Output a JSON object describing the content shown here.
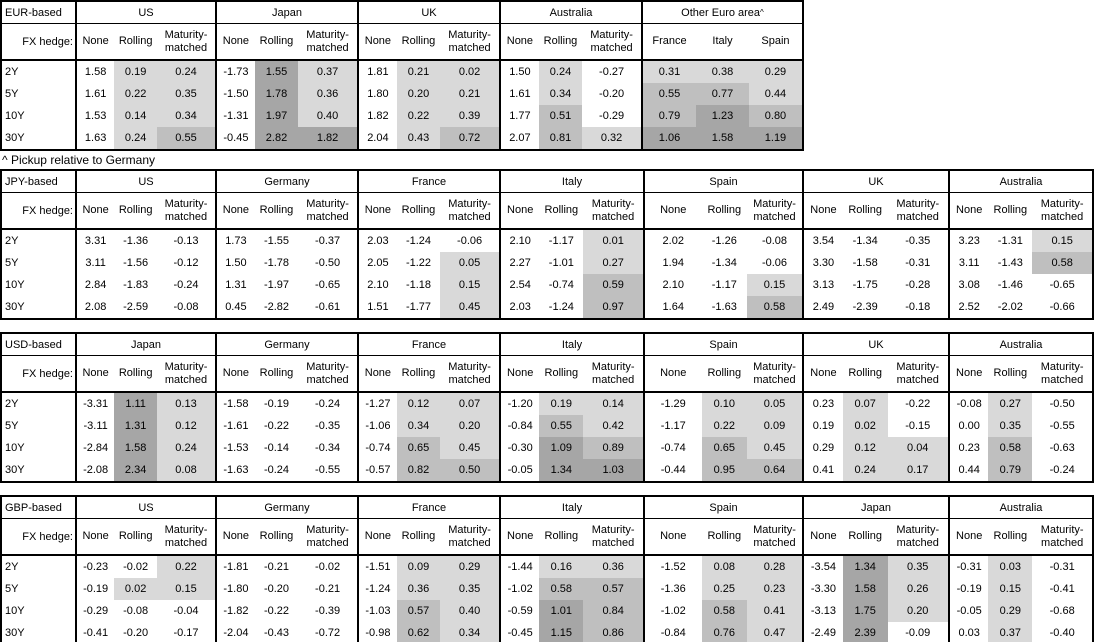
{
  "page": {
    "footnote": "^ Pickup relative to Germany"
  },
  "colors": {
    "heat_light": "#d9d9d9",
    "heat_medium": "#bfbfbf",
    "heat_dark": "#a6a6a6",
    "border": "#000000",
    "background": "#ffffff"
  },
  "heat_scale": {
    "light_min": 0,
    "medium_min": 0.5,
    "dark_min": 1
  },
  "labels": {
    "fx_hedge": "FX hedge:",
    "maturities": [
      "2Y",
      "5Y",
      "10Y",
      "30Y"
    ],
    "hedge_columns": [
      "None",
      "Rolling",
      "Maturity-matched"
    ]
  },
  "chart_data": {
    "type": "table",
    "tables": [
      {
        "base": "EUR-based",
        "groups": [
          {
            "name": "US",
            "columns": [
              "None",
              "Rolling",
              "Maturity-matched"
            ],
            "heat": [
              false,
              true,
              true
            ],
            "rows": [
              [
                "1.58",
                "0.19",
                "0.24"
              ],
              [
                "1.61",
                "0.22",
                "0.35"
              ],
              [
                "1.53",
                "0.14",
                "0.34"
              ],
              [
                "1.63",
                "0.24",
                "0.55"
              ]
            ]
          },
          {
            "name": "Japan",
            "columns": [
              "None",
              "Rolling",
              "Maturity-matched"
            ],
            "heat": [
              false,
              true,
              true
            ],
            "rows": [
              [
                "-1.73",
                "1.55",
                "0.37"
              ],
              [
                "-1.50",
                "1.78",
                "0.36"
              ],
              [
                "-1.31",
                "1.97",
                "0.40"
              ],
              [
                "-0.45",
                "2.82",
                "1.82"
              ]
            ]
          },
          {
            "name": "UK",
            "columns": [
              "None",
              "Rolling",
              "Maturity-matched"
            ],
            "heat": [
              false,
              true,
              true
            ],
            "rows": [
              [
                "1.81",
                "0.21",
                "0.02"
              ],
              [
                "1.80",
                "0.20",
                "0.21"
              ],
              [
                "1.82",
                "0.22",
                "0.39"
              ],
              [
                "2.04",
                "0.43",
                "0.72"
              ]
            ]
          },
          {
            "name": "Australia",
            "columns": [
              "None",
              "Rolling",
              "Maturity-matched"
            ],
            "heat": [
              false,
              true,
              true
            ],
            "rows": [
              [
                "1.50",
                "0.24",
                "-0.27"
              ],
              [
                "1.61",
                "0.34",
                "-0.20"
              ],
              [
                "1.77",
                "0.51",
                "-0.29"
              ],
              [
                "2.07",
                "0.81",
                "0.32"
              ]
            ]
          },
          {
            "name": "Other Euro area",
            "footnote_marker": "^",
            "columns": [
              "France",
              "Italy",
              "Spain"
            ],
            "heat": [
              true,
              true,
              true
            ],
            "rows": [
              [
                "0.31",
                "0.38",
                "0.29"
              ],
              [
                "0.55",
                "0.77",
                "0.44"
              ],
              [
                "0.79",
                "1.23",
                "0.80"
              ],
              [
                "1.06",
                "1.58",
                "1.19"
              ]
            ]
          }
        ]
      },
      {
        "base": "JPY-based",
        "groups": [
          {
            "name": "US",
            "columns": [
              "None",
              "Rolling",
              "Maturity-matched"
            ],
            "heat": [
              false,
              true,
              true
            ],
            "rows": [
              [
                "3.31",
                "-1.36",
                "-0.13"
              ],
              [
                "3.11",
                "-1.56",
                "-0.12"
              ],
              [
                "2.84",
                "-1.83",
                "-0.24"
              ],
              [
                "2.08",
                "-2.59",
                "-0.08"
              ]
            ]
          },
          {
            "name": "Germany",
            "columns": [
              "None",
              "Rolling",
              "Maturity-matched"
            ],
            "heat": [
              false,
              true,
              true
            ],
            "rows": [
              [
                "1.73",
                "-1.55",
                "-0.37"
              ],
              [
                "1.50",
                "-1.78",
                "-0.50"
              ],
              [
                "1.31",
                "-1.97",
                "-0.65"
              ],
              [
                "0.45",
                "-2.82",
                "-0.61"
              ]
            ]
          },
          {
            "name": "France",
            "columns": [
              "None",
              "Rolling",
              "Maturity-matched"
            ],
            "heat": [
              false,
              true,
              true
            ],
            "rows": [
              [
                "2.03",
                "-1.24",
                "-0.06"
              ],
              [
                "2.05",
                "-1.22",
                "0.05"
              ],
              [
                "2.10",
                "-1.18",
                "0.15"
              ],
              [
                "1.51",
                "-1.77",
                "0.45"
              ]
            ]
          },
          {
            "name": "Italy",
            "columns": [
              "None",
              "Rolling",
              "Maturity-matched"
            ],
            "heat": [
              false,
              true,
              true
            ],
            "rows": [
              [
                "2.10",
                "-1.17",
                "0.01"
              ],
              [
                "2.27",
                "-1.01",
                "0.27"
              ],
              [
                "2.54",
                "-0.74",
                "0.59"
              ],
              [
                "2.03",
                "-1.24",
                "0.97"
              ]
            ]
          },
          {
            "name": "Spain",
            "columns": [
              "None",
              "Rolling",
              "Maturity-matched"
            ],
            "heat": [
              false,
              true,
              true
            ],
            "rows": [
              [
                "2.02",
                "-1.26",
                "-0.08"
              ],
              [
                "1.94",
                "-1.34",
                "-0.06"
              ],
              [
                "2.10",
                "-1.17",
                "0.15"
              ],
              [
                "1.64",
                "-1.63",
                "0.58"
              ]
            ]
          },
          {
            "name": "UK",
            "columns": [
              "None",
              "Rolling",
              "Maturity-matched"
            ],
            "heat": [
              false,
              true,
              true
            ],
            "rows": [
              [
                "3.54",
                "-1.34",
                "-0.35"
              ],
              [
                "3.30",
                "-1.58",
                "-0.31"
              ],
              [
                "3.13",
                "-1.75",
                "-0.28"
              ],
              [
                "2.49",
                "-2.39",
                "-0.18"
              ]
            ]
          },
          {
            "name": "Australia",
            "columns": [
              "None",
              "Rolling",
              "Maturity-matched"
            ],
            "heat": [
              false,
              true,
              true
            ],
            "rows": [
              [
                "3.23",
                "-1.31",
                "0.15"
              ],
              [
                "3.11",
                "-1.43",
                "0.58"
              ],
              [
                "3.08",
                "-1.46",
                "-0.65"
              ],
              [
                "2.52",
                "-2.02",
                "-0.66"
              ]
            ]
          }
        ]
      },
      {
        "base": "USD-based",
        "groups": [
          {
            "name": "Japan",
            "columns": [
              "None",
              "Rolling",
              "Maturity-matched"
            ],
            "heat": [
              false,
              true,
              true
            ],
            "rows": [
              [
                "-3.31",
                "1.11",
                "0.13"
              ],
              [
                "-3.11",
                "1.31",
                "0.12"
              ],
              [
                "-2.84",
                "1.58",
                "0.24"
              ],
              [
                "-2.08",
                "2.34",
                "0.08"
              ]
            ]
          },
          {
            "name": "Germany",
            "columns": [
              "None",
              "Rolling",
              "Maturity-matched"
            ],
            "heat": [
              false,
              true,
              true
            ],
            "rows": [
              [
                "-1.58",
                "-0.19",
                "-0.24"
              ],
              [
                "-1.61",
                "-0.22",
                "-0.35"
              ],
              [
                "-1.53",
                "-0.14",
                "-0.34"
              ],
              [
                "-1.63",
                "-0.24",
                "-0.55"
              ]
            ]
          },
          {
            "name": "France",
            "columns": [
              "None",
              "Rolling",
              "Maturity-matched"
            ],
            "heat": [
              false,
              true,
              true
            ],
            "rows": [
              [
                "-1.27",
                "0.12",
                "0.07"
              ],
              [
                "-1.06",
                "0.34",
                "0.20"
              ],
              [
                "-0.74",
                "0.65",
                "0.45"
              ],
              [
                "-0.57",
                "0.82",
                "0.50"
              ]
            ]
          },
          {
            "name": "Italy",
            "columns": [
              "None",
              "Rolling",
              "Maturity-matched"
            ],
            "heat": [
              false,
              true,
              true
            ],
            "rows": [
              [
                "-1.20",
                "0.19",
                "0.14"
              ],
              [
                "-0.84",
                "0.55",
                "0.42"
              ],
              [
                "-0.30",
                "1.09",
                "0.89"
              ],
              [
                "-0.05",
                "1.34",
                "1.03"
              ]
            ]
          },
          {
            "name": "Spain",
            "columns": [
              "None",
              "Rolling",
              "Maturity-matched"
            ],
            "heat": [
              false,
              true,
              true
            ],
            "rows": [
              [
                "-1.29",
                "0.10",
                "0.05"
              ],
              [
                "-1.17",
                "0.22",
                "0.09"
              ],
              [
                "-0.74",
                "0.65",
                "0.45"
              ],
              [
                "-0.44",
                "0.95",
                "0.64"
              ]
            ]
          },
          {
            "name": "UK",
            "columns": [
              "None",
              "Rolling",
              "Maturity-matched"
            ],
            "heat": [
              false,
              true,
              true
            ],
            "rows": [
              [
                "0.23",
                "0.07",
                "-0.22"
              ],
              [
                "0.19",
                "0.02",
                "-0.15"
              ],
              [
                "0.29",
                "0.12",
                "0.04"
              ],
              [
                "0.41",
                "0.24",
                "0.17"
              ]
            ]
          },
          {
            "name": "Australia",
            "columns": [
              "None",
              "Rolling",
              "Maturity-matched"
            ],
            "heat": [
              false,
              true,
              true
            ],
            "rows": [
              [
                "-0.08",
                "0.27",
                "-0.50"
              ],
              [
                "0.00",
                "0.35",
                "-0.55"
              ],
              [
                "0.23",
                "0.58",
                "-0.63"
              ],
              [
                "0.44",
                "0.79",
                "-0.24"
              ]
            ]
          }
        ]
      },
      {
        "base": "GBP-based",
        "groups": [
          {
            "name": "US",
            "columns": [
              "None",
              "Rolling",
              "Maturity-matched"
            ],
            "heat": [
              false,
              true,
              true
            ],
            "rows": [
              [
                "-0.23",
                "-0.02",
                "0.22"
              ],
              [
                "-0.19",
                "0.02",
                "0.15"
              ],
              [
                "-0.29",
                "-0.08",
                "-0.04"
              ],
              [
                "-0.41",
                "-0.20",
                "-0.17"
              ]
            ]
          },
          {
            "name": "Germany",
            "columns": [
              "None",
              "Rolling",
              "Maturity-matched"
            ],
            "heat": [
              false,
              true,
              true
            ],
            "rows": [
              [
                "-1.81",
                "-0.21",
                "-0.02"
              ],
              [
                "-1.80",
                "-0.20",
                "-0.21"
              ],
              [
                "-1.82",
                "-0.22",
                "-0.39"
              ],
              [
                "-2.04",
                "-0.43",
                "-0.72"
              ]
            ]
          },
          {
            "name": "France",
            "columns": [
              "None",
              "Rolling",
              "Maturity-matched"
            ],
            "heat": [
              false,
              true,
              true
            ],
            "rows": [
              [
                "-1.51",
                "0.09",
                "0.29"
              ],
              [
                "-1.24",
                "0.36",
                "0.35"
              ],
              [
                "-1.03",
                "0.57",
                "0.40"
              ],
              [
                "-0.98",
                "0.62",
                "0.34"
              ]
            ]
          },
          {
            "name": "Italy",
            "columns": [
              "None",
              "Rolling",
              "Maturity-matched"
            ],
            "heat": [
              false,
              true,
              true
            ],
            "rows": [
              [
                "-1.44",
                "0.16",
                "0.36"
              ],
              [
                "-1.02",
                "0.58",
                "0.57"
              ],
              [
                "-0.59",
                "1.01",
                "0.84"
              ],
              [
                "-0.45",
                "1.15",
                "0.86"
              ]
            ]
          },
          {
            "name": "Spain",
            "columns": [
              "None",
              "Rolling",
              "Maturity-matched"
            ],
            "heat": [
              false,
              true,
              true
            ],
            "rows": [
              [
                "-1.52",
                "0.08",
                "0.28"
              ],
              [
                "-1.36",
                "0.25",
                "0.23"
              ],
              [
                "-1.02",
                "0.58",
                "0.41"
              ],
              [
                "-0.84",
                "0.76",
                "0.47"
              ]
            ]
          },
          {
            "name": "Japan",
            "columns": [
              "None",
              "Rolling",
              "Maturity-matched"
            ],
            "heat": [
              false,
              true,
              true
            ],
            "rows": [
              [
                "-3.54",
                "1.34",
                "0.35"
              ],
              [
                "-3.30",
                "1.58",
                "0.26"
              ],
              [
                "-3.13",
                "1.75",
                "0.20"
              ],
              [
                "-2.49",
                "2.39",
                "-0.09"
              ]
            ]
          },
          {
            "name": "Australia",
            "columns": [
              "None",
              "Rolling",
              "Maturity-matched"
            ],
            "heat": [
              false,
              true,
              true
            ],
            "rows": [
              [
                "-0.31",
                "0.03",
                "-0.31"
              ],
              [
                "-0.19",
                "0.15",
                "-0.41"
              ],
              [
                "-0.05",
                "0.29",
                "-0.68"
              ],
              [
                "0.03",
                "0.37",
                "-0.40"
              ]
            ]
          }
        ]
      }
    ]
  }
}
